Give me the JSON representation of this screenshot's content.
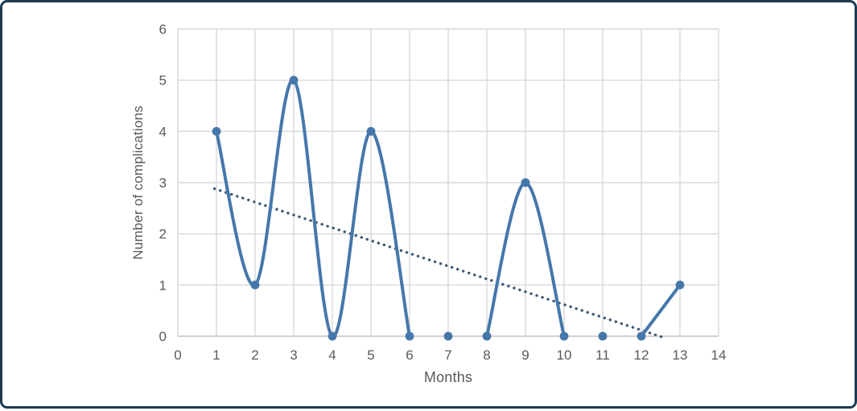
{
  "window": {
    "type": "framed-figure",
    "border_color": "#1d3a50",
    "background_color": "#ffffff"
  },
  "colors": {
    "series_line": "#4677ab",
    "trendline": "#3e5a75",
    "gridline": "#d9d9d9",
    "axis_line": "#c2c2c2",
    "tick_text": "#595959",
    "axis_title_text": "#595959"
  },
  "chart_data": {
    "type": "line",
    "title": "",
    "xlabel": "Months",
    "ylabel": "Number of complications",
    "xlim": [
      0,
      14
    ],
    "ylim": [
      0,
      6
    ],
    "x_ticks": [
      0,
      1,
      2,
      3,
      4,
      5,
      6,
      7,
      8,
      9,
      10,
      11,
      12,
      13,
      14
    ],
    "y_ticks": [
      0,
      1,
      2,
      3,
      4,
      5,
      6
    ],
    "grid": true,
    "legend": false,
    "series": [
      {
        "name": "complications",
        "style": "smooth-line-with-markers",
        "color": "#4677ab",
        "points": [
          [
            1,
            4
          ],
          [
            2,
            1
          ],
          [
            3,
            5
          ],
          [
            4,
            0
          ],
          [
            5,
            4
          ],
          [
            6,
            0
          ],
          [
            7,
            0
          ],
          [
            8,
            0
          ],
          [
            9,
            3
          ],
          [
            10,
            0
          ],
          [
            11,
            0
          ],
          [
            12,
            0
          ],
          [
            13,
            1
          ]
        ],
        "connected_segments": [
          [
            1,
            2,
            3,
            4,
            5,
            6
          ],
          [
            7
          ],
          [
            8,
            9,
            10
          ],
          [
            11
          ],
          [
            12,
            13
          ]
        ]
      },
      {
        "name": "linear-trendline",
        "style": "dotted-line",
        "color": "#3e5a75",
        "start": [
          0.95,
          2.88
        ],
        "end": [
          12.55,
          -0.02
        ]
      }
    ]
  }
}
